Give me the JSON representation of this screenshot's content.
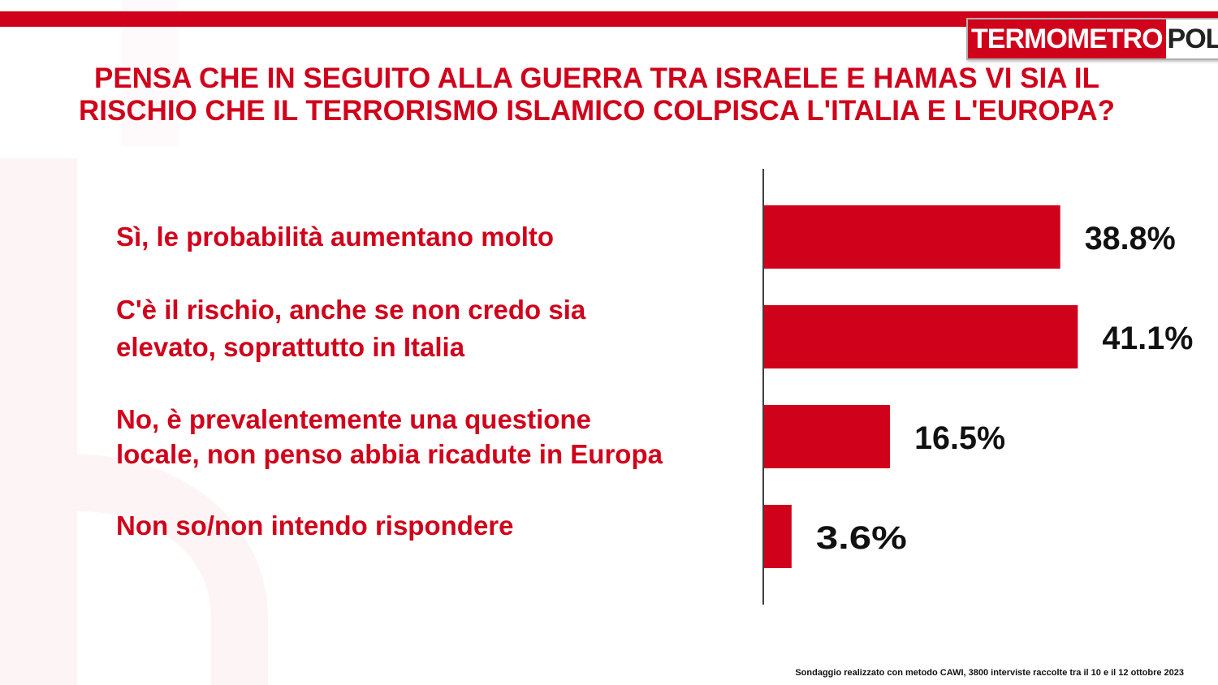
{
  "colors": {
    "accent": "#d0021b",
    "bar": "#d0021b",
    "value_text": "#111111"
  },
  "logo": {
    "part1": "TERMOMETRO",
    "part2": "POLITICO"
  },
  "chart_data": {
    "type": "bar",
    "orientation": "horizontal",
    "title_lines": [
      "PENSA CHE IN SEGUITO ALLA GUERRA TRA ISRAELE E HAMAS VI SIA IL",
      "RISCHIO CHE IL TERRORISMO ISLAMICO COLPISCA L'ITALIA E L'EUROPA?"
    ],
    "categories": [
      [
        "Sì, le probabilità aumentano molto"
      ],
      [
        "C'è il rischio, anche se non credo sia",
        "elevato, soprattutto in Italia"
      ],
      [
        "No, è prevalentemente una questione",
        "locale, non penso abbia ricadute in Europa"
      ],
      [
        "Non so/non intendo rispondere"
      ]
    ],
    "values": [
      38.8,
      41.1,
      16.5,
      3.6
    ],
    "value_labels": [
      "38.8%",
      "41.1%",
      "16.5%",
      "3.6%"
    ],
    "unit": "%",
    "xlim": [
      0,
      100
    ],
    "grid": false,
    "legend": "none"
  },
  "footnote": "Sondaggio realizzato con metodo CAWI, 3800 interviste raccolte tra il 10 e il 12 ottobre 2023"
}
